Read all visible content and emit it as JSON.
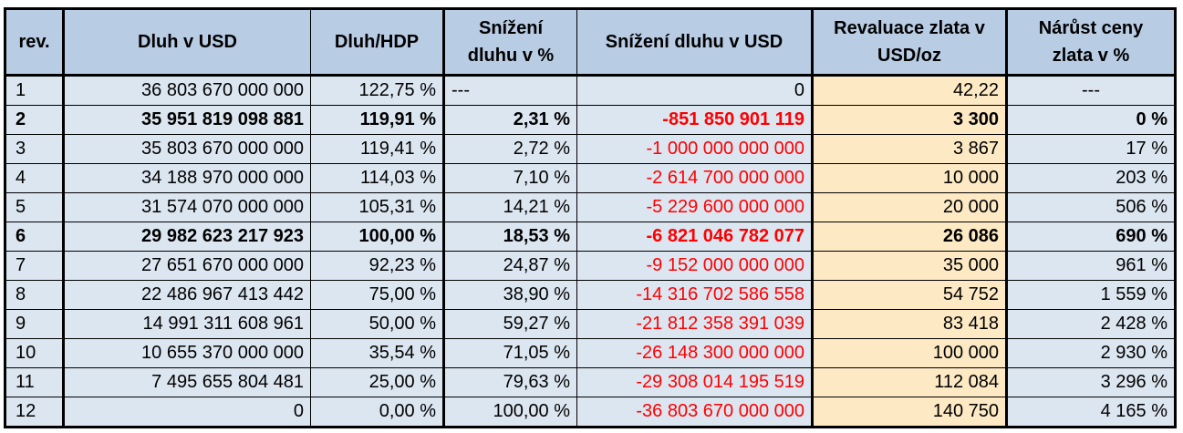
{
  "headers": {
    "rev": "rev.",
    "debt": "Dluh v USD",
    "ratio": "Dluh/HDP",
    "reduction_pct": "Snížení dluhu v %",
    "reduction_usd": "Snížení dluhu v USD",
    "gold_reval": "Revaluace zlata v USD/oz",
    "gold_growth": "Nárůst ceny zlata v %"
  },
  "rows": [
    {
      "rev": "1",
      "debt": "36 803 670 000 000",
      "ratio": "122,75 %",
      "reduction_pct": "---",
      "reduction_usd": "0",
      "gold_reval": "42,22",
      "gold_growth": "---",
      "bold": false
    },
    {
      "rev": "2",
      "debt": "35 951 819 098 881",
      "ratio": "119,91 %",
      "reduction_pct": "2,31 %",
      "reduction_usd": "-851 850 901 119",
      "gold_reval": "3 300",
      "gold_growth": "0 %",
      "bold": true
    },
    {
      "rev": "3",
      "debt": "35 803 670 000 000",
      "ratio": "119,41 %",
      "reduction_pct": "2,72 %",
      "reduction_usd": "-1 000 000 000 000",
      "gold_reval": "3 867",
      "gold_growth": "17 %",
      "bold": false
    },
    {
      "rev": "4",
      "debt": "34 188 970 000 000",
      "ratio": "114,03 %",
      "reduction_pct": "7,10 %",
      "reduction_usd": "-2 614 700 000 000",
      "gold_reval": "10 000",
      "gold_growth": "203 %",
      "bold": false
    },
    {
      "rev": "5",
      "debt": "31 574 070 000 000",
      "ratio": "105,31 %",
      "reduction_pct": "14,21 %",
      "reduction_usd": "-5 229 600 000 000",
      "gold_reval": "20 000",
      "gold_growth": "506 %",
      "bold": false
    },
    {
      "rev": "6",
      "debt": "29 982 623 217 923",
      "ratio": "100,00 %",
      "reduction_pct": "18,53 %",
      "reduction_usd": "-6 821 046 782 077",
      "gold_reval": "26 086",
      "gold_growth": "690 %",
      "bold": true
    },
    {
      "rev": "7",
      "debt": "27 651 670 000 000",
      "ratio": "92,23 %",
      "reduction_pct": "24,87 %",
      "reduction_usd": "-9 152 000 000 000",
      "gold_reval": "35 000",
      "gold_growth": "961 %",
      "bold": false
    },
    {
      "rev": "8",
      "debt": "22 486 967 413 442",
      "ratio": "75,00 %",
      "reduction_pct": "38,90 %",
      "reduction_usd": "-14 316 702 586 558",
      "gold_reval": "54 752",
      "gold_growth": "1 559 %",
      "bold": false
    },
    {
      "rev": "9",
      "debt": "14 991 311 608 961",
      "ratio": "50,00 %",
      "reduction_pct": "59,27 %",
      "reduction_usd": "-21 812 358 391 039",
      "gold_reval": "83 418",
      "gold_growth": "2 428 %",
      "bold": false
    },
    {
      "rev": "10",
      "debt": "10 655 370 000 000",
      "ratio": "35,54 %",
      "reduction_pct": "71,05 %",
      "reduction_usd": "-26 148 300 000 000",
      "gold_reval": "100 000",
      "gold_growth": "2 930 %",
      "bold": false
    },
    {
      "rev": "11",
      "debt": "7 495 655 804 481",
      "ratio": "25,00 %",
      "reduction_pct": "79,63 %",
      "reduction_usd": "-29 308 014 195 519",
      "gold_reval": "112 084",
      "gold_growth": "3 296 %",
      "bold": false
    },
    {
      "rev": "12",
      "debt": "0",
      "ratio": "0,00 %",
      "reduction_pct": "100,00 %",
      "reduction_usd": "-36 803 670 000 000",
      "gold_reval": "140 750",
      "gold_growth": "4 165 %",
      "bold": false
    }
  ],
  "colors": {
    "header_bg": "#b8cce4",
    "cell_bg": "#dce6f1",
    "gold_bg": "#fde9c4",
    "negative_text": "#ff0000"
  }
}
